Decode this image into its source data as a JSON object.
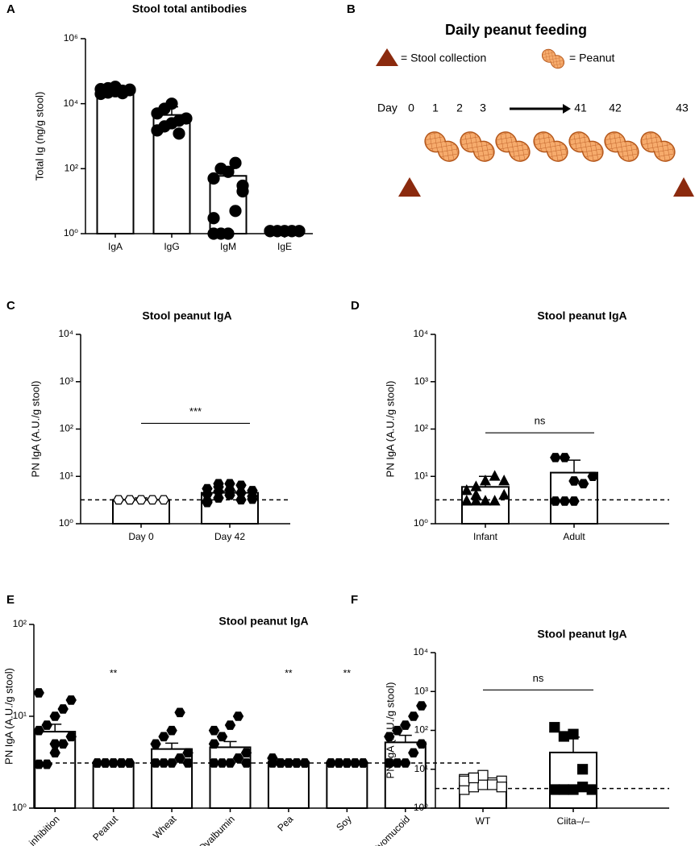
{
  "chart_data": [
    {
      "panel": "A",
      "type": "bar",
      "title": "Stool total antibodies",
      "ylabel": "Total Ig (ng/g stool)",
      "log": true,
      "categories": [
        "IgA",
        "IgG",
        "IgM",
        "IgE"
      ],
      "values": [
        25000,
        4500,
        60,
        1.2
      ],
      "errors": [
        5000,
        3500,
        40,
        0
      ],
      "points": [
        [
          20000,
          22000,
          24000,
          25000,
          26000,
          28000,
          30000,
          33000,
          21000,
          27000
        ],
        [
          1500,
          2000,
          2500,
          3000,
          3500,
          5000,
          7000,
          10000,
          1200
        ],
        [
          1,
          1,
          1,
          5,
          20,
          50,
          100,
          80,
          150,
          30,
          3
        ],
        [
          1.2,
          1.2,
          1.2,
          1.2,
          1.2,
          1.2,
          1.2,
          1.2,
          1.2,
          1.2
        ]
      ],
      "markers": [
        "circle",
        "circle",
        "circle",
        "circle"
      ],
      "color": "#ffffff",
      "ylim": [
        1,
        1000000
      ],
      "yticks": [
        {
          "value": 1,
          "label": "10⁰"
        },
        {
          "value": 100,
          "label": "10²"
        },
        {
          "value": 10000,
          "label": "10⁴"
        },
        {
          "value": 1000000,
          "label": "10⁶"
        }
      ]
    },
    {
      "panel": "C",
      "type": "bar",
      "title": "Stool peanut IgA",
      "ylabel": "PN IgA (A.U./g stool)",
      "log": true,
      "categories": [
        "Day 0",
        "Day 42"
      ],
      "values": [
        3.2,
        4.5
      ],
      "errors": [
        0.3,
        0.4
      ],
      "points": [
        [
          3.2,
          3.2,
          3.2,
          3.2,
          3.2,
          3.2,
          3.2,
          3.2,
          3.2,
          3.2,
          3.2,
          3.2
        ],
        [
          3,
          3.5,
          4,
          4.5,
          5,
          5.5,
          6,
          7,
          3.2,
          3.8,
          4.2,
          4.8,
          5.2,
          6.5,
          3.3,
          2.8,
          7
        ]
      ],
      "markers": [
        "hexagon-open",
        "hexagon"
      ],
      "color": "#ffffff",
      "threshold": 3.2,
      "comparison": "***",
      "ylim": [
        1,
        10000
      ],
      "yticks": [
        {
          "value": 1,
          "label": "10⁰"
        },
        {
          "value": 10,
          "label": "10¹"
        },
        {
          "value": 100,
          "label": "10²"
        },
        {
          "value": 1000,
          "label": "10³"
        },
        {
          "value": 10000,
          "label": "10⁴"
        }
      ]
    },
    {
      "panel": "D",
      "type": "bar",
      "title": "Stool peanut IgA",
      "ylabel": "PN IgA (A.U./g stool)",
      "log": true,
      "categories": [
        "Infant",
        "Adult"
      ],
      "values": [
        6,
        12
      ],
      "errors": [
        4,
        10
      ],
      "points": [
        [
          3,
          3,
          3,
          3,
          4,
          5,
          6,
          8,
          10,
          8,
          3,
          4
        ],
        [
          3,
          3,
          3,
          7,
          10,
          25,
          25,
          8
        ]
      ],
      "markers": [
        "triangle",
        "hexagon"
      ],
      "color": "#ffffff",
      "threshold": 3.2,
      "comparison": "ns",
      "ylim": [
        1,
        10000
      ],
      "yticks": [
        {
          "value": 1,
          "label": "10⁰"
        },
        {
          "value": 10,
          "label": "10¹"
        },
        {
          "value": 100,
          "label": "10²"
        },
        {
          "value": 1000,
          "label": "10³"
        },
        {
          "value": 10000,
          "label": "10⁴"
        }
      ]
    },
    {
      "panel": "E",
      "type": "bar",
      "title": "Stool peanut IgA",
      "ylabel": "PN IgA (A.U./g stool)",
      "log": true,
      "categories": [
        "No inhibition",
        "Peanut",
        "Wheat",
        "Ovalbumin",
        "Pea",
        "Soy",
        "Ovomucoid"
      ],
      "values": [
        6.8,
        3.1,
        4.4,
        4.6,
        3.2,
        3.1,
        5.2
      ],
      "errors": [
        1.4,
        0.1,
        0.7,
        0.7,
        0.1,
        0.1,
        1
      ],
      "points": [
        [
          3,
          3,
          4,
          5,
          6,
          7,
          8,
          10,
          12,
          15,
          18,
          3,
          5
        ],
        [
          3.1,
          3.1,
          3.1,
          3.1,
          3.1,
          3.1,
          3.1,
          3.1,
          3.1,
          3.1
        ],
        [
          3.1,
          3.1,
          3.1,
          3.5,
          4,
          5,
          6,
          7,
          11,
          3.1
        ],
        [
          3.1,
          3.1,
          3.1,
          3.5,
          4,
          5,
          6,
          8,
          10,
          3.1,
          7
        ],
        [
          3.1,
          3.1,
          3.1,
          3.1,
          3.1,
          3.5,
          3.1,
          3.1,
          3.1,
          3.1
        ],
        [
          3.1,
          3.1,
          3.1,
          3.1,
          3.1,
          3.1,
          3.1,
          3.1,
          3.1,
          3.1
        ],
        [
          3.1,
          3.1,
          3.1,
          4,
          5,
          6,
          7,
          8,
          10,
          13,
          3.1
        ]
      ],
      "markers": [
        "hexagon",
        "hexagon",
        "hexagon",
        "hexagon",
        "hexagon",
        "hexagon",
        "hexagon"
      ],
      "color": "#ffffff",
      "threshold": 3.1,
      "stars": [
        null,
        "**",
        null,
        null,
        "**",
        "**",
        null
      ],
      "ylim": [
        1,
        100
      ],
      "yticks": [
        {
          "value": 1,
          "label": "10⁰"
        },
        {
          "value": 10,
          "label": "10¹"
        },
        {
          "value": 100,
          "label": "10²"
        }
      ]
    },
    {
      "panel": "F",
      "type": "bar",
      "title": "Stool peanut IgA",
      "ylabel": "PN IgA (A.U./g stool)",
      "log": true,
      "categories": [
        "WT",
        "Ciita–/–"
      ],
      "values": [
        4.5,
        27
      ],
      "errors": [
        0.6,
        40
      ],
      "points": [
        [
          3,
          3.5,
          4,
          4.5,
          5,
          5.5,
          6,
          7,
          4,
          3.5,
          5,
          6
        ],
        [
          120,
          70,
          80,
          10,
          3,
          3,
          3,
          3,
          3.5
        ]
      ],
      "markers": [
        "square-open",
        "square"
      ],
      "color": "#ffffff",
      "threshold": 3.2,
      "comparison": "ns",
      "ylim": [
        1,
        10000
      ],
      "yticks": [
        {
          "value": 1,
          "label": "10⁰"
        },
        {
          "value": 10,
          "label": "10¹"
        },
        {
          "value": 100,
          "label": "10²"
        },
        {
          "value": 1000,
          "label": "10³"
        },
        {
          "value": 10000,
          "label": "10⁴"
        }
      ]
    }
  ],
  "diagram": {
    "panel": "B",
    "title": "Daily peanut feeding",
    "legend": [
      "= Stool collection",
      "= Peanut"
    ],
    "day_label": "Day",
    "days": [
      "0",
      "1",
      "2",
      "3",
      "41",
      "42",
      "43"
    ]
  }
}
